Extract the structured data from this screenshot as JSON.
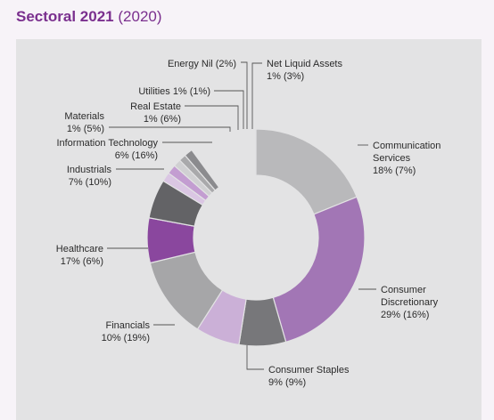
{
  "title": {
    "main": "Sectoral 2021",
    "comparison": "(2020)"
  },
  "chart_data": {
    "type": "pie",
    "donut": true,
    "title": "Sectoral 2021 (2020)",
    "series": [
      {
        "name": "2021",
        "values": [
          18,
          29,
          9,
          10,
          17,
          7,
          6,
          1,
          1,
          1,
          0,
          1
        ]
      },
      {
        "name": "2020",
        "values": [
          7,
          16,
          9,
          19,
          6,
          10,
          16,
          5,
          6,
          1,
          2,
          3
        ]
      }
    ],
    "slices": [
      {
        "label": "Communication Services",
        "label_lines": [
          "Communication",
          "Services"
        ],
        "value_text": "18% (7%)",
        "value": 18,
        "prior": 7,
        "color": "#b9b9bb"
      },
      {
        "label": "Consumer Discretionary",
        "label_lines": [
          "Consumer",
          "Discretionary"
        ],
        "value_text": "29% (16%)",
        "value": 29,
        "prior": 16,
        "color": "#a276b5"
      },
      {
        "label": "Consumer Staples",
        "label_lines": [
          "Consumer Staples"
        ],
        "value_text": "9% (9%)",
        "value": 9,
        "prior": 9,
        "color": "#77777a"
      },
      {
        "label": "Financials",
        "label_lines": [
          "Financials"
        ],
        "value_text": "10% (19%)",
        "value": 10,
        "prior": 19,
        "color": "#cbb0d7"
      },
      {
        "label": "Healthcare",
        "label_lines": [
          "Healthcare"
        ],
        "value_text": "17% (6%)",
        "value": 17,
        "prior": 6,
        "color": "#a6a6a8"
      },
      {
        "label": "Industrials",
        "label_lines": [
          "Industrials"
        ],
        "value_text": "7% (10%)",
        "value": 7,
        "prior": 10,
        "color": "#8a479e"
      },
      {
        "label": "Information Technology",
        "label_lines": [
          "Information Technology"
        ],
        "value_text": "6% (16%)",
        "value": 6,
        "prior": 16,
        "color": "#636366"
      },
      {
        "label": "Materials",
        "label_lines": [
          "Materials"
        ],
        "value_text": "1% (5%)",
        "value": 1,
        "prior": 5,
        "color": "#dac6e3"
      },
      {
        "label": "Real Estate",
        "label_lines": [
          "Real Estate"
        ],
        "value_text": "1% (6%)",
        "value": 1,
        "prior": 6,
        "color": "#c39dd1"
      },
      {
        "label": "Utilities",
        "label_lines": [
          "Utilities 1% (1%)"
        ],
        "value_text": "",
        "value": 1,
        "prior": 1,
        "color": "#d0d0d2"
      },
      {
        "label": "Energy",
        "label_lines": [
          "Energy Nil (2%)"
        ],
        "value_text": "",
        "value": 0,
        "prior": 2,
        "color": "#a9a9ab"
      },
      {
        "label": "Net Liquid Assets",
        "label_lines": [
          "Net Liquid Assets"
        ],
        "value_text": "1% (3%)",
        "value": 1,
        "prior": 3,
        "color": "#8b8b8e"
      }
    ]
  }
}
